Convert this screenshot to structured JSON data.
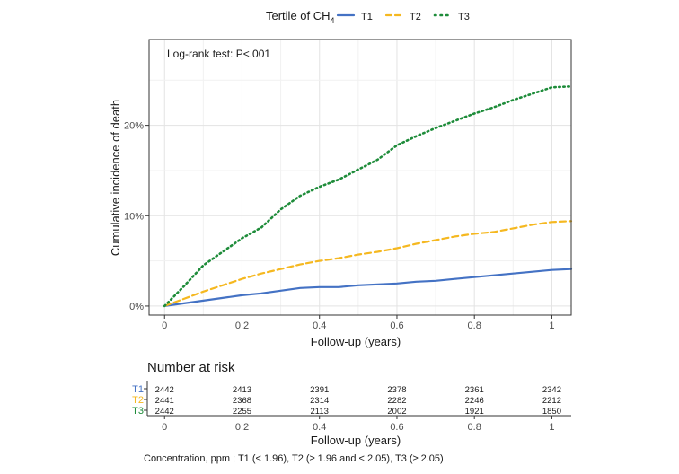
{
  "chart_data": {
    "type": "line",
    "legend": {
      "title_prefix": "Tertile of CH",
      "title_subscript": "4",
      "position": "top",
      "items": [
        {
          "label": "T1",
          "color": "#4472C4",
          "dash": "solid"
        },
        {
          "label": "T2",
          "color": "#F5B820",
          "dash": "dashed"
        },
        {
          "label": "T3",
          "color": "#1E8C3A",
          "dash": "dotted"
        }
      ]
    },
    "annotation": "Log-rank test: P<.001",
    "xlabel": "Follow-up (years)",
    "ylabel": "Cumulative incidence of death",
    "xlim": [
      -0.04,
      1.05
    ],
    "ylim": [
      -0.01,
      0.295
    ],
    "x_ticks": [
      0,
      0.2,
      0.4,
      0.6,
      0.8,
      1
    ],
    "x_tick_labels": [
      "0",
      "0.2",
      "0.4",
      "0.6",
      "0.8",
      "1"
    ],
    "y_ticks": [
      0,
      0.1,
      0.2
    ],
    "y_tick_labels": [
      "0%",
      "10%",
      "20%"
    ],
    "grid": true,
    "series": [
      {
        "name": "T1",
        "x": [
          0,
          0.05,
          0.1,
          0.15,
          0.2,
          0.25,
          0.3,
          0.35,
          0.4,
          0.45,
          0.5,
          0.55,
          0.6,
          0.65,
          0.7,
          0.75,
          0.8,
          0.85,
          0.9,
          0.95,
          1.0,
          1.05
        ],
        "y": [
          0,
          0.003,
          0.006,
          0.009,
          0.012,
          0.014,
          0.017,
          0.02,
          0.021,
          0.021,
          0.023,
          0.024,
          0.025,
          0.027,
          0.028,
          0.03,
          0.032,
          0.034,
          0.036,
          0.038,
          0.04,
          0.041
        ]
      },
      {
        "name": "T2",
        "x": [
          0,
          0.05,
          0.1,
          0.15,
          0.2,
          0.25,
          0.3,
          0.35,
          0.4,
          0.45,
          0.5,
          0.55,
          0.6,
          0.65,
          0.7,
          0.75,
          0.8,
          0.85,
          0.9,
          0.95,
          1.0,
          1.05
        ],
        "y": [
          0,
          0.008,
          0.016,
          0.023,
          0.03,
          0.036,
          0.041,
          0.046,
          0.05,
          0.053,
          0.057,
          0.06,
          0.064,
          0.069,
          0.073,
          0.077,
          0.08,
          0.082,
          0.086,
          0.09,
          0.093,
          0.094
        ]
      },
      {
        "name": "T3",
        "x": [
          0,
          0.05,
          0.1,
          0.15,
          0.2,
          0.25,
          0.3,
          0.35,
          0.4,
          0.45,
          0.5,
          0.55,
          0.6,
          0.65,
          0.7,
          0.75,
          0.8,
          0.85,
          0.9,
          0.95,
          1.0,
          1.05
        ],
        "y": [
          0,
          0.022,
          0.045,
          0.06,
          0.075,
          0.087,
          0.107,
          0.122,
          0.132,
          0.14,
          0.151,
          0.162,
          0.178,
          0.188,
          0.197,
          0.205,
          0.213,
          0.22,
          0.228,
          0.235,
          0.242,
          0.243
        ]
      }
    ],
    "risk_table": {
      "title": "Number at risk",
      "xlabel": "Follow-up (years)",
      "x_ticks": [
        0,
        0.2,
        0.4,
        0.6,
        0.8,
        1
      ],
      "x_tick_labels": [
        "0",
        "0.2",
        "0.4",
        "0.6",
        "0.8",
        "1"
      ],
      "rows": [
        {
          "label": "T1",
          "color": "#4472C4",
          "values": [
            "2442",
            "2413",
            "2391",
            "2378",
            "2361",
            "2342"
          ]
        },
        {
          "label": "T2",
          "color": "#F5B820",
          "values": [
            "2441",
            "2368",
            "2314",
            "2282",
            "2246",
            "2212"
          ]
        },
        {
          "label": "T3",
          "color": "#1E8C3A",
          "values": [
            "2442",
            "2255",
            "2113",
            "2002",
            "1921",
            "1850"
          ]
        }
      ]
    },
    "footnote": "Concentration, ppm ; T1 (< 1.96), T2 (≥ 1.96 and < 2.05), T3 (≥ 2.05)"
  }
}
